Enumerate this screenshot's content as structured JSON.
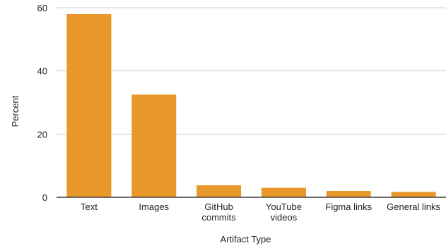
{
  "chart_data": {
    "type": "bar",
    "title": "",
    "xlabel": "Artifact Type",
    "ylabel": "Percent",
    "categories": [
      [
        "Text"
      ],
      [
        "Images"
      ],
      [
        "GitHub",
        "commits"
      ],
      [
        "YouTube",
        "videos"
      ],
      [
        "Figma links"
      ],
      [
        "General links"
      ]
    ],
    "values": [
      58,
      32.5,
      3.8,
      3.0,
      2.0,
      1.7
    ],
    "ylim": [
      0,
      60
    ],
    "yticks": [
      0,
      20,
      40,
      60
    ],
    "grid": true,
    "bar_color": "#E8982A"
  }
}
